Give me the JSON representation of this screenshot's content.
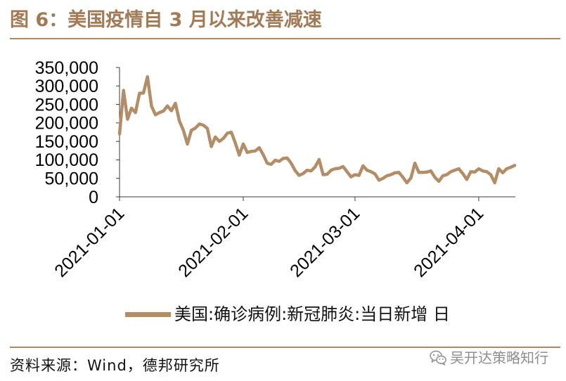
{
  "colors": {
    "title": "#a27a55",
    "rule": "#b08860",
    "series_line": "#b38d66",
    "axis": "#3a3a3a",
    "text": "#111111",
    "watermark": "#8e8e8e"
  },
  "chart_data": {
    "type": "line",
    "title": "图 6：美国疫情自 3 月以来改善减速",
    "x": [
      "2021-01-01",
      "2021-01-02",
      "2021-01-03",
      "2021-01-04",
      "2021-01-05",
      "2021-01-06",
      "2021-01-07",
      "2021-01-08",
      "2021-01-09",
      "2021-01-10",
      "2021-01-11",
      "2021-01-12",
      "2021-01-13",
      "2021-01-14",
      "2021-01-15",
      "2021-01-16",
      "2021-01-17",
      "2021-01-18",
      "2021-01-19",
      "2021-01-20",
      "2021-01-21",
      "2021-01-22",
      "2021-01-23",
      "2021-01-24",
      "2021-01-25",
      "2021-01-26",
      "2021-01-27",
      "2021-01-28",
      "2021-01-29",
      "2021-01-30",
      "2021-01-31",
      "2021-02-01",
      "2021-02-02",
      "2021-02-03",
      "2021-02-04",
      "2021-02-05",
      "2021-02-06",
      "2021-02-07",
      "2021-02-08",
      "2021-02-09",
      "2021-02-10",
      "2021-02-11",
      "2021-02-12",
      "2021-02-13",
      "2021-02-14",
      "2021-02-15",
      "2021-02-16",
      "2021-02-17",
      "2021-02-18",
      "2021-02-19",
      "2021-02-20",
      "2021-02-21",
      "2021-02-22",
      "2021-02-23",
      "2021-02-24",
      "2021-02-25",
      "2021-02-26",
      "2021-02-27",
      "2021-02-28",
      "2021-03-01",
      "2021-03-02",
      "2021-03-03",
      "2021-03-04",
      "2021-03-05",
      "2021-03-06",
      "2021-03-07",
      "2021-03-08",
      "2021-03-09",
      "2021-03-10",
      "2021-03-11",
      "2021-03-12",
      "2021-03-13",
      "2021-03-14",
      "2021-03-15",
      "2021-03-16",
      "2021-03-17",
      "2021-03-18",
      "2021-03-19",
      "2021-03-20",
      "2021-03-21",
      "2021-03-22",
      "2021-03-23",
      "2021-03-24",
      "2021-03-25",
      "2021-03-26",
      "2021-03-27",
      "2021-03-28",
      "2021-03-29",
      "2021-03-30",
      "2021-03-31",
      "2021-04-01",
      "2021-04-02",
      "2021-04-03",
      "2021-04-04",
      "2021-04-05",
      "2021-04-06",
      "2021-04-07",
      "2021-04-08",
      "2021-04-09",
      "2021-04-10"
    ],
    "series": [
      {
        "name": "美国:确诊病例:新冠肺炎:当日新增 日",
        "values": [
          170000,
          288000,
          210000,
          240000,
          228000,
          280000,
          281000,
          325000,
          246000,
          222000,
          228000,
          232000,
          246000,
          233000,
          253000,
          205000,
          180000,
          143000,
          180000,
          186000,
          197000,
          194000,
          185000,
          136000,
          162000,
          150000,
          158000,
          172000,
          175000,
          146000,
          113000,
          143000,
          120000,
          123000,
          124000,
          133000,
          114000,
          91000,
          88000,
          99000,
          96000,
          104000,
          105000,
          91000,
          71000,
          58000,
          63000,
          72000,
          70000,
          81000,
          101000,
          60000,
          61000,
          72000,
          76000,
          77000,
          82000,
          68000,
          54000,
          60000,
          58000,
          84000,
          72000,
          68000,
          62000,
          45000,
          50000,
          57000,
          60000,
          65000,
          66000,
          53000,
          38000,
          51000,
          91000,
          66000,
          66000,
          67000,
          70000,
          53000,
          42000,
          57000,
          60000,
          68000,
          72000,
          76000,
          63000,
          47000,
          68000,
          67000,
          76000,
          70000,
          68000,
          60000,
          38000,
          76000,
          65000,
          76000,
          80000,
          85000
        ]
      }
    ],
    "xlim": [
      "2021-01-01",
      "2021-04-10"
    ],
    "ylim": [
      0,
      350000
    ],
    "xticks": [
      "2021-01-01",
      "2021-02-01",
      "2021-03-01",
      "2021-04-01"
    ],
    "yticks": [
      0,
      50000,
      100000,
      150000,
      200000,
      250000,
      300000,
      350000
    ],
    "ytick_labels": [
      "0",
      "50,000",
      "100,000",
      "150,000",
      "200,000",
      "250,000",
      "300,000",
      "350,000"
    ],
    "grid": false,
    "legend": "bottom"
  },
  "source": "资料来源：Wind，德邦研究所",
  "watermark": {
    "icon": "wechat-icon",
    "text": "吴开达策略知行"
  }
}
